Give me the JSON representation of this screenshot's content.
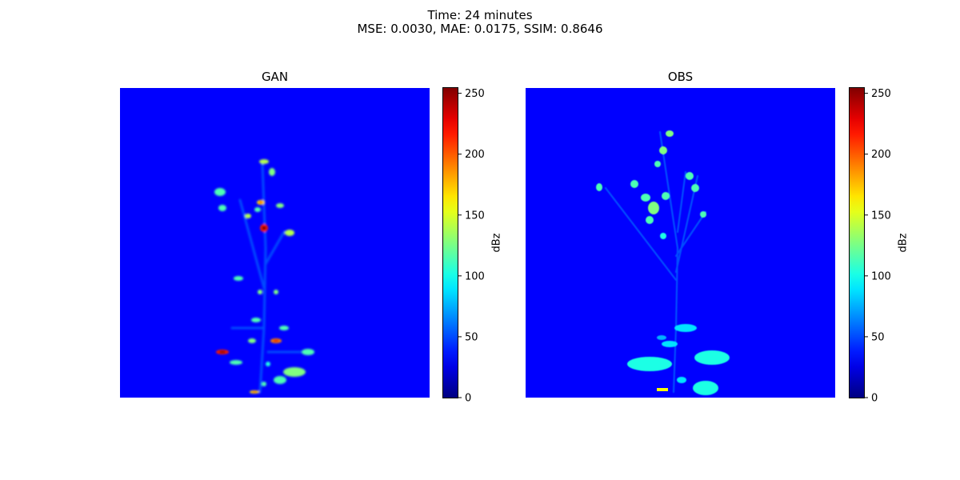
{
  "figure": {
    "title_line1": "Time: 24 minutes",
    "title_line2": "MSE: 0.0030, MAE: 0.0175, SSIM: 0.8646"
  },
  "chart_data": [
    {
      "type": "heatmap",
      "title": "GAN",
      "colormap": "jet",
      "value_range": [
        0,
        255
      ],
      "axes_visible": false,
      "grid": false,
      "colorbar": {
        "label": "dBz",
        "ticks": [
          0,
          50,
          100,
          150,
          200,
          250
        ],
        "tick_labels": [
          "0",
          "50",
          "100",
          "150",
          "200",
          "250"
        ],
        "range": [
          0,
          255
        ]
      }
    },
    {
      "type": "heatmap",
      "title": "OBS",
      "colormap": "jet",
      "value_range": [
        0,
        255
      ],
      "axes_visible": false,
      "grid": false,
      "colorbar": {
        "label": "dBz",
        "ticks": [
          0,
          50,
          100,
          150,
          200,
          250
        ],
        "tick_labels": [
          "0",
          "50",
          "100",
          "150",
          "200",
          "250"
        ],
        "range": [
          0,
          255
        ]
      }
    }
  ]
}
